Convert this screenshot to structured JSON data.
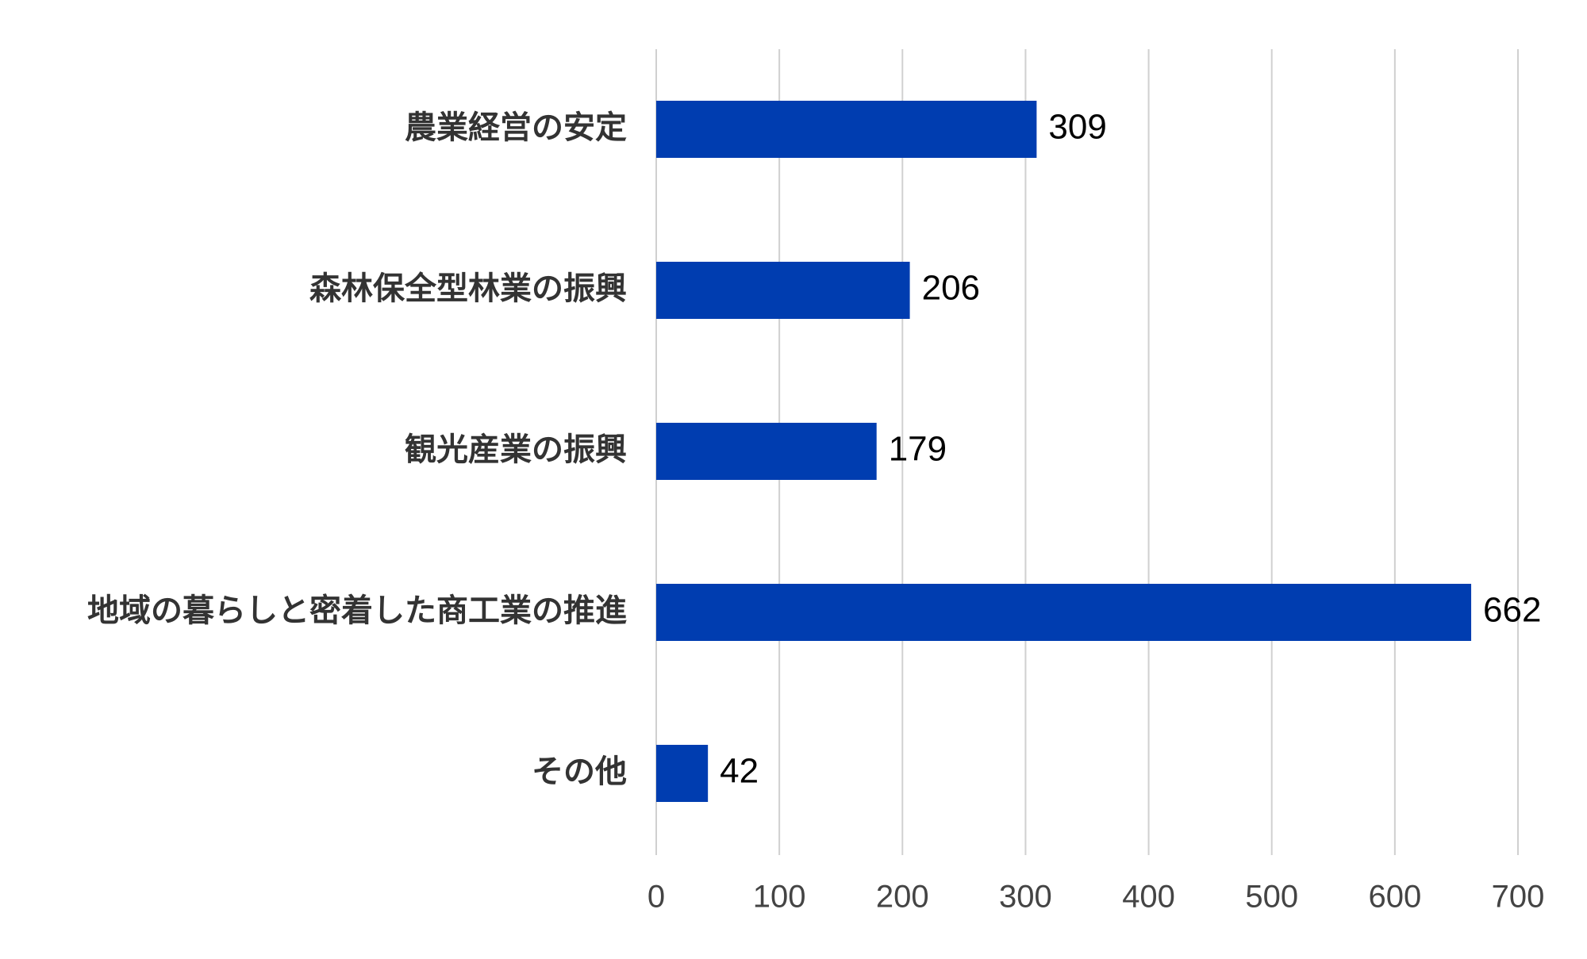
{
  "chart_data": {
    "type": "bar",
    "orientation": "horizontal",
    "categories": [
      "農業経営の安定",
      "森林保全型林業の振興",
      "観光産業の振興",
      "地域の暮らしと密着した商工業の推進",
      "その他"
    ],
    "values": [
      309,
      206,
      179,
      662,
      42
    ],
    "xlim": [
      0,
      700
    ],
    "xticks": [
      0,
      100,
      200,
      300,
      400,
      500,
      600,
      700
    ],
    "grid": "vertical",
    "data_labels": true,
    "title": "",
    "xlabel": "",
    "ylabel": "",
    "colors": {
      "bar": "#003DB0",
      "grid": "#d0d0d0"
    }
  }
}
